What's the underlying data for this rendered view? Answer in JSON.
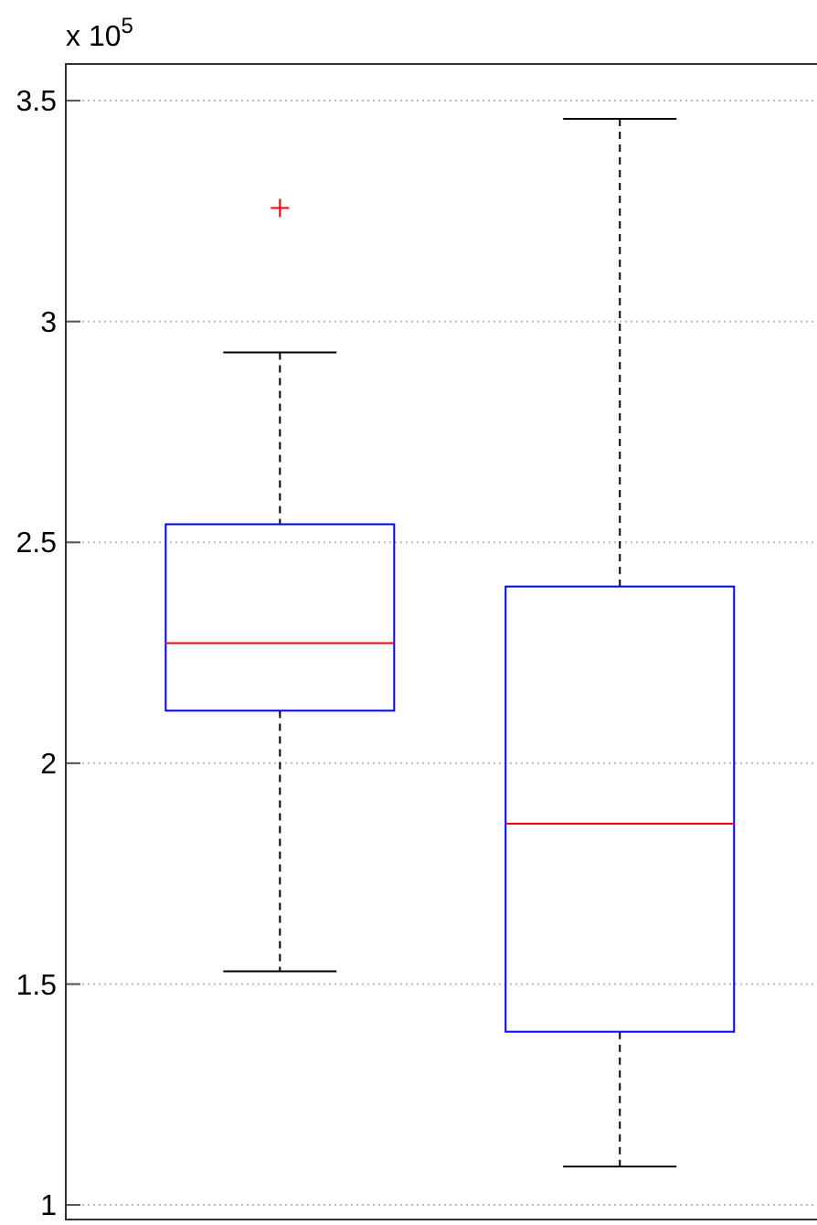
{
  "chart_data": {
    "type": "box",
    "categories": [
      null,
      null
    ],
    "boxes": [
      {
        "low": 1.529,
        "q1": 2.119,
        "median": 2.272,
        "q3": 2.541,
        "high": 2.93,
        "outliers": [
          3.257
        ]
      },
      {
        "low": 1.087,
        "q1": 1.392,
        "median": 1.863,
        "q3": 2.4,
        "high": 3.459
      }
    ],
    "ylim": [
      0.967,
      3.583
    ],
    "yticks": [
      1,
      1.5,
      2,
      2.5,
      3,
      3.5
    ],
    "annotations": [
      "x 10$^{5}$"
    ],
    "grid": "y",
    "tick_labels": "y"
  }
}
